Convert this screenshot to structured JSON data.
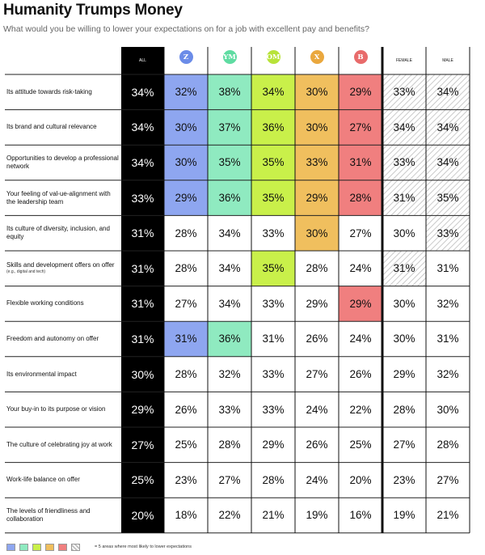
{
  "header": {
    "title": "Humanity Trumps Money",
    "subtitle": "What would you be willing to lower your expectations on for a job with excellent pay and benefits?"
  },
  "columns": [
    {
      "key": "all",
      "label": "ALL",
      "type": "text"
    },
    {
      "key": "z",
      "label": "Z",
      "type": "badge",
      "color": "#6b8ce8"
    },
    {
      "key": "ym",
      "label": "YM",
      "type": "badge",
      "color": "#5fdca2"
    },
    {
      "key": "om",
      "label": "OM",
      "type": "badge",
      "color": "#b8e33a"
    },
    {
      "key": "x",
      "label": "X",
      "type": "badge",
      "color": "#eaa83e"
    },
    {
      "key": "b",
      "label": "B",
      "type": "badge",
      "color": "#e86b6b"
    },
    {
      "key": "female",
      "label": "FEMALE",
      "type": "text"
    },
    {
      "key": "male",
      "label": "MALE",
      "type": "text"
    }
  ],
  "colors": {
    "all_column": "#000000",
    "z": "#8ea6f0",
    "ym": "#8feac0",
    "om": "#c9f04a",
    "x": "#f0bf5e",
    "b": "#f07f7f",
    "hatch": "#bdbdbd"
  },
  "chart_data": {
    "type": "table",
    "title": "Humanity Trumps Money",
    "subtitle": "What would you be willing to lower your expectations on for a job with excellent pay and benefits?",
    "unit": "%",
    "rows": [
      {
        "label": "Its attitude towards risk-taking",
        "values": [
          34,
          32,
          38,
          34,
          30,
          29,
          33,
          34
        ],
        "highlight": [
          false,
          true,
          true,
          true,
          true,
          true,
          true,
          true
        ]
      },
      {
        "label": "Its brand and cultural relevance",
        "values": [
          34,
          30,
          37,
          36,
          30,
          27,
          34,
          34
        ],
        "highlight": [
          false,
          true,
          true,
          true,
          true,
          true,
          true,
          true
        ]
      },
      {
        "label": "Opportunities to develop a professional network",
        "values": [
          34,
          30,
          35,
          35,
          33,
          31,
          33,
          34
        ],
        "highlight": [
          false,
          true,
          true,
          true,
          true,
          true,
          true,
          true
        ]
      },
      {
        "label": "Your feeling of val-ue-alignment with the leadership team",
        "values": [
          33,
          29,
          36,
          35,
          29,
          28,
          31,
          35
        ],
        "highlight": [
          false,
          true,
          true,
          true,
          true,
          true,
          true,
          true
        ]
      },
      {
        "label": "Its culture of diversity, inclusion, and equity",
        "values": [
          31,
          28,
          34,
          33,
          30,
          27,
          30,
          33
        ],
        "highlight": [
          false,
          false,
          false,
          false,
          true,
          false,
          false,
          true
        ]
      },
      {
        "label": "Skills and development offers on offer",
        "note": "(e.g., digital and tech)",
        "values": [
          31,
          28,
          34,
          35,
          28,
          24,
          31,
          31
        ],
        "highlight": [
          false,
          false,
          false,
          true,
          false,
          false,
          true,
          false
        ]
      },
      {
        "label": "Flexible working conditions",
        "values": [
          31,
          27,
          34,
          33,
          29,
          29,
          30,
          32
        ],
        "highlight": [
          false,
          false,
          false,
          false,
          false,
          true,
          false,
          false
        ]
      },
      {
        "label": "Freedom and autonomy on offer",
        "values": [
          31,
          31,
          36,
          31,
          26,
          24,
          30,
          31
        ],
        "highlight": [
          false,
          true,
          true,
          false,
          false,
          false,
          false,
          false
        ]
      },
      {
        "label": "Its environmental impact",
        "values": [
          30,
          28,
          32,
          33,
          27,
          26,
          29,
          32
        ],
        "highlight": [
          false,
          false,
          false,
          false,
          false,
          false,
          false,
          false
        ]
      },
      {
        "label": "Your buy-in to its purpose or vision",
        "values": [
          29,
          26,
          33,
          33,
          24,
          22,
          28,
          30
        ],
        "highlight": [
          false,
          false,
          false,
          false,
          false,
          false,
          false,
          false
        ]
      },
      {
        "label": "The culture of celebrating joy at work",
        "values": [
          27,
          25,
          28,
          29,
          26,
          25,
          27,
          28
        ],
        "highlight": [
          false,
          false,
          false,
          false,
          false,
          false,
          false,
          false
        ]
      },
      {
        "label": "Work-life balance on offer",
        "values": [
          25,
          23,
          27,
          28,
          24,
          20,
          23,
          27
        ],
        "highlight": [
          false,
          false,
          false,
          false,
          false,
          false,
          false,
          false
        ]
      },
      {
        "label": "The levels of friendliness and collaboration",
        "values": [
          20,
          18,
          22,
          21,
          19,
          16,
          19,
          21
        ],
        "highlight": [
          false,
          false,
          false,
          false,
          false,
          false,
          false,
          false
        ]
      }
    ]
  },
  "legend": {
    "text": "= 5 areas where most likely to lower expectations",
    "swatches": [
      "#8ea6f0",
      "#8feac0",
      "#c9f04a",
      "#f0bf5e",
      "#f07f7f",
      "hatch"
    ]
  }
}
